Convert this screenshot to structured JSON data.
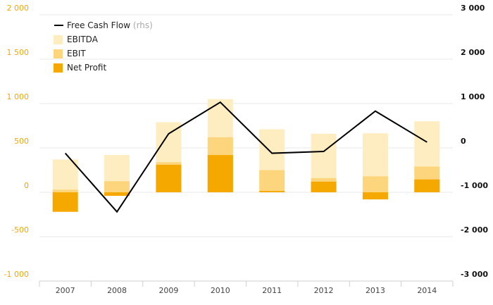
{
  "chart_data": {
    "type": "bar",
    "categories": [
      "2007",
      "2008",
      "2009",
      "2010",
      "2011",
      "2012",
      "2013",
      "2014"
    ],
    "series": [
      {
        "name": "EBITDA",
        "kind": "bar",
        "axis": "left",
        "color": "#ffedc2",
        "values": [
          370,
          420,
          790,
          1050,
          710,
          660,
          665,
          800
        ]
      },
      {
        "name": "EBIT",
        "kind": "bar",
        "axis": "left",
        "color": "#fdd57c",
        "values": [
          30,
          125,
          340,
          620,
          250,
          160,
          180,
          290
        ]
      },
      {
        "name": "Net Profit",
        "kind": "bar",
        "axis": "left",
        "color": "#f5a800",
        "values": [
          -220,
          -40,
          310,
          420,
          15,
          120,
          -80,
          145
        ]
      },
      {
        "name": "Free Cash Flow",
        "kind": "line",
        "axis": "right",
        "color": "#000000",
        "values": [
          -120,
          -1440,
          320,
          1030,
          -120,
          -80,
          830,
          130
        ]
      }
    ],
    "legend": {
      "items": [
        "Free Cash Flow",
        "EBITDA",
        "EBIT",
        "Net Profit"
      ],
      "line_suffix": "(rhs)",
      "position": "top-left"
    },
    "y_left": {
      "min": -1000,
      "max": 2000,
      "ticks": [
        "-1 000",
        "-500",
        "0",
        "500",
        "1 000",
        "1 500",
        "2 000"
      ],
      "color": "#f5a800"
    },
    "y_right": {
      "min": -3000,
      "max": 3000,
      "ticks": [
        "-3 000",
        "-2 000",
        "-1 000",
        "0",
        "1 000",
        "2 000",
        "3 000"
      ],
      "color": "#111111"
    },
    "grid": true
  }
}
